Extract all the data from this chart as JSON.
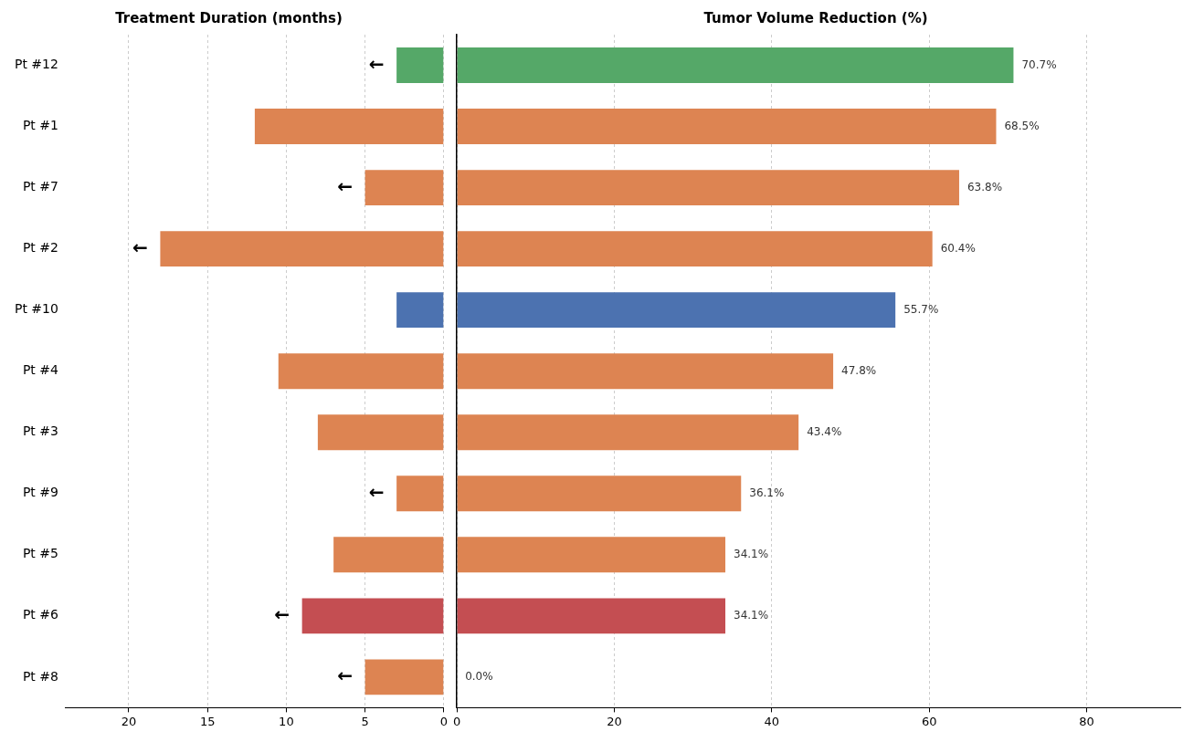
{
  "chart_data": [
    {
      "type": "bar",
      "orientation": "horizontal",
      "title": "Treatment Duration (months)",
      "categories": [
        "Pt #12",
        "Pt #1",
        "Pt #7",
        "Pt #2",
        "Pt #10",
        "Pt #4",
        "Pt #3",
        "Pt #9",
        "Pt #5",
        "Pt #6",
        "Pt #8"
      ],
      "values": [
        3,
        12,
        5,
        18,
        3,
        10.5,
        8,
        3,
        7,
        9,
        5
      ],
      "colors": [
        "#55a868",
        "#dd8452",
        "#dd8452",
        "#dd8452",
        "#4c72b0",
        "#dd8452",
        "#dd8452",
        "#dd8452",
        "#dd8452",
        "#c44e52",
        "#dd8452"
      ],
      "xlim": [
        24,
        0
      ],
      "xticks": [
        20,
        15,
        10,
        5,
        0
      ],
      "grid": "x",
      "annotations": [
        {
          "text": "←",
          "x": 3,
          "y": "Pt #12"
        },
        {
          "text": "←",
          "x": 5,
          "y": "Pt #7"
        },
        {
          "text": "←",
          "x": 18,
          "y": "Pt #2"
        },
        {
          "text": "←",
          "x": 3,
          "y": "Pt #9"
        },
        {
          "text": "←",
          "x": 9,
          "y": "Pt #6"
        },
        {
          "text": "←",
          "x": 5,
          "y": "Pt #8"
        }
      ]
    },
    {
      "type": "bar",
      "orientation": "horizontal",
      "title": "Tumor Volume Reduction (%)",
      "categories": [
        null,
        null,
        null,
        null,
        null,
        null,
        null,
        null,
        null,
        null,
        null
      ],
      "values": [
        70.7,
        68.5,
        63.8,
        60.4,
        55.7,
        47.8,
        43.4,
        36.1,
        34.1,
        34.1,
        0
      ],
      "value_labels": [
        "70.7%",
        "68.5%",
        "63.8%",
        "60.4%",
        "55.7%",
        "47.8%",
        "43.4%",
        "36.1%",
        "34.1%",
        "34.1%",
        "0.0%"
      ],
      "colors": [
        "#55a868",
        "#dd8452",
        "#dd8452",
        "#dd8452",
        "#4c72b0",
        "#dd8452",
        "#dd8452",
        "#dd8452",
        "#dd8452",
        "#c44e52",
        "#dd8452"
      ],
      "xlim": [
        0,
        92
      ],
      "xticks": [
        0,
        20,
        40,
        60,
        80
      ],
      "grid": "x"
    }
  ]
}
